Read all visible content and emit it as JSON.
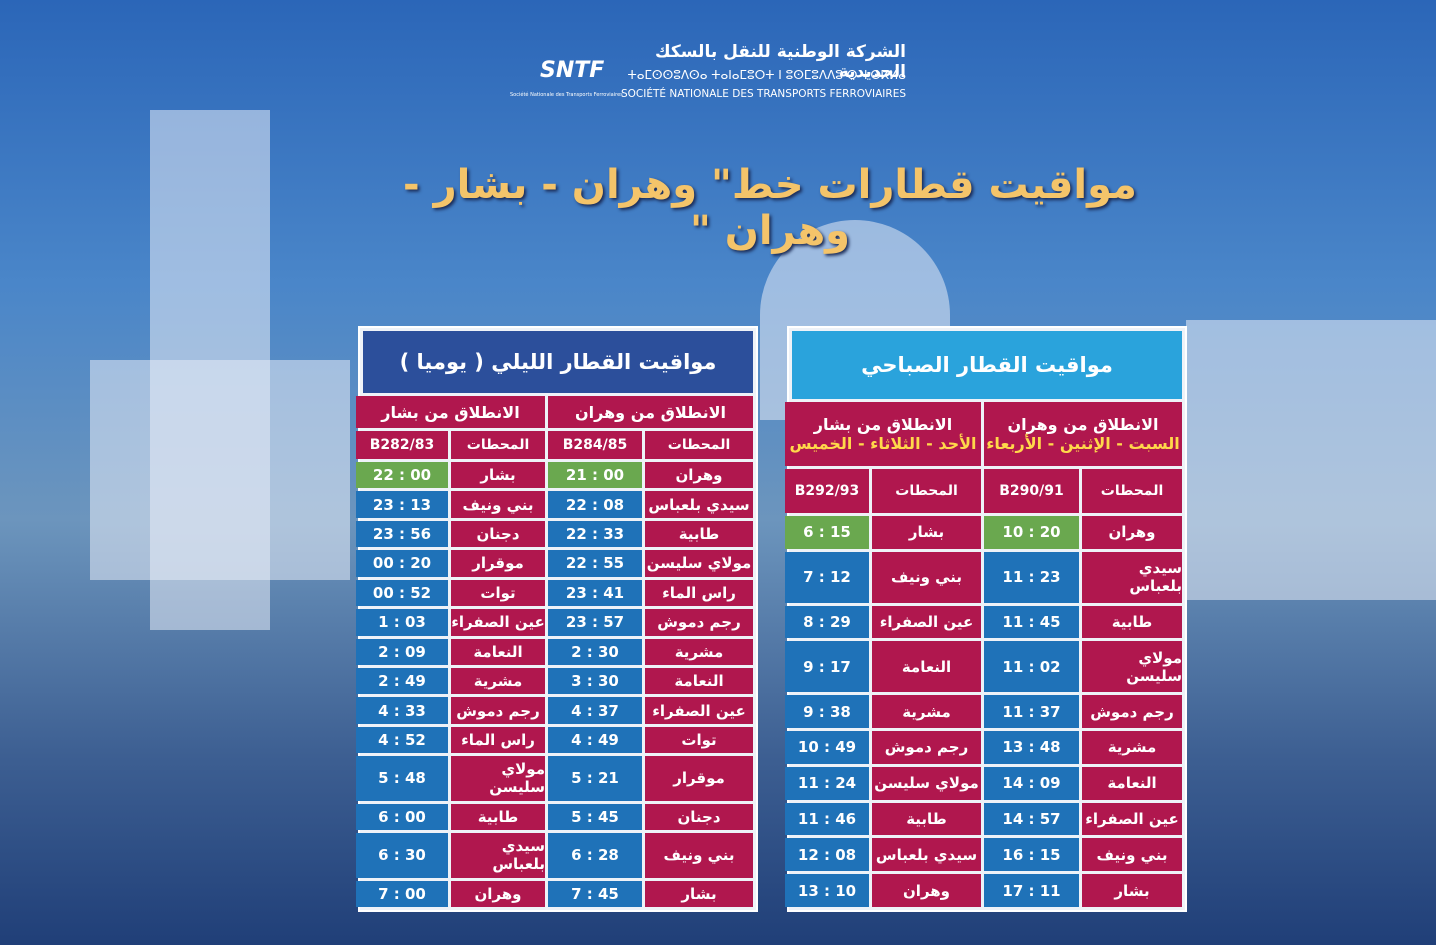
{
  "header": {
    "logo_text": "SNTF",
    "logo_subtext": "Société Nationale des Transports Ferroviaires",
    "arabic_name": "الشركة الوطنية للنقل بالسكك الحديدية",
    "tifinagh_name": "ⵜⴰⵎⵙⵙⵓⴷⵙⴰ ⵜⴰⵏⴰⵎⵓⵔⵜ ⵏ ⵓⵙⵎⵓⴷⴷⵓ ⵙ ⵜⵙⴽⵍⴰ",
    "french_name": "SOCIÉTÉ NATIONALE DES TRANSPORTS FERROVIAIRES"
  },
  "title": "مواقيت قطارات خط\" وهران - بشار - وهران \"",
  "night_table": {
    "title": "مواقيت القطار الليلي ( يوميا )",
    "sections": [
      {
        "label": "الانطلاق من وهران"
      },
      {
        "label": "الانطلاق من بشار"
      }
    ],
    "columns": [
      "المحطات",
      "B284/85",
      "المحطات",
      "B282/83"
    ],
    "rows": [
      [
        "وهران",
        "21 : 00",
        "بشار",
        "22 : 00"
      ],
      [
        "سيدي بلعباس",
        "22 : 08",
        "بني ونيف",
        "23 : 13"
      ],
      [
        "طابية",
        "22 : 33",
        "دجنان",
        "23 : 56"
      ],
      [
        "مولاي سليسن",
        "22 : 55",
        "موقرار",
        "00 : 20"
      ],
      [
        "راس الماء",
        "23 : 41",
        "توات",
        "00 : 52"
      ],
      [
        "رجم دموش",
        "23 : 57",
        "عين الصفراء",
        "1 : 03"
      ],
      [
        "مشرية",
        "2 : 30",
        "النعامة",
        "2 : 09"
      ],
      [
        "النعامة",
        "3 : 30",
        "مشرية",
        "2 : 49"
      ],
      [
        "عين الصفراء",
        "4 : 37",
        "رجم دموش",
        "4 : 33"
      ],
      [
        "توات",
        "4 : 49",
        "راس الماء",
        "4 : 52"
      ],
      [
        "موقرار",
        "5 : 21",
        "مولاي سليسن",
        "5 : 48"
      ],
      [
        "دجنان",
        "5 : 45",
        "طابية",
        "6 : 00"
      ],
      [
        "بني ونيف",
        "6 : 28",
        "سيدي بلعباس",
        "6 : 30"
      ],
      [
        "بشار",
        "7 : 45",
        "وهران",
        "7 : 00"
      ]
    ]
  },
  "morning_table": {
    "title": "مواقيت القطار الصباحي",
    "sections": [
      {
        "label": "الانطلاق من وهران",
        "days": "السبت - الإثنين - الأربعاء"
      },
      {
        "label": "الانطلاق من بشار",
        "days": "الأحد - الثلاثاء - الخميس"
      }
    ],
    "columns": [
      "المحطات",
      "B290/91",
      "المحطات",
      "B292/93"
    ],
    "rows": [
      [
        "وهران",
        "10 : 20",
        "بشار",
        "6 : 15"
      ],
      [
        "سيدي بلعباس",
        "11 : 23",
        "بني ونيف",
        "7 : 12"
      ],
      [
        "طابية",
        "11 : 45",
        "عين الصفراء",
        "8 : 29"
      ],
      [
        "مولاي سليسن",
        "11 : 02",
        "النعامة",
        "9 : 17"
      ],
      [
        "رجم دموش",
        "11 : 37",
        "مشرية",
        "9 : 38"
      ],
      [
        "مشرية",
        "13 : 48",
        "رجم دموش",
        "10 : 49"
      ],
      [
        "النعامة",
        "14 : 09",
        "مولاي سليسن",
        "11 : 24"
      ],
      [
        "عين الصفراء",
        "14 : 57",
        "طابية",
        "11 : 46"
      ],
      [
        "بني ونيف",
        "16 : 15",
        "سيدي بلعباس",
        "12 : 08"
      ],
      [
        "بشار",
        "17 : 11",
        "وهران",
        "13 : 10"
      ]
    ]
  }
}
